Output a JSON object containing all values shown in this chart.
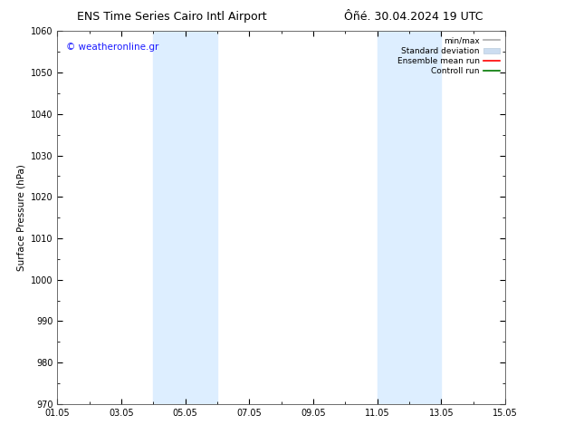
{
  "title_left": "ENS Time Series Cairo Intl Airport",
  "title_right": "Ôñé. 30.04.2024 19 UTC",
  "ylabel": "Surface Pressure (hPa)",
  "ylim": [
    970,
    1060
  ],
  "yticks": [
    970,
    980,
    990,
    1000,
    1010,
    1020,
    1030,
    1040,
    1050,
    1060
  ],
  "xlim_start": 0,
  "xlim_end": 14,
  "xtick_labels": [
    "01.05",
    "03.05",
    "05.05",
    "07.05",
    "09.05",
    "11.05",
    "13.05",
    "15.05"
  ],
  "xtick_positions": [
    0,
    2,
    4,
    6,
    8,
    10,
    12,
    14
  ],
  "shaded_regions": [
    {
      "x_start": 3.0,
      "x_end": 5.0,
      "color": "#ddeeff"
    },
    {
      "x_start": 10.0,
      "x_end": 12.0,
      "color": "#ddeeff"
    }
  ],
  "watermark": "© weatheronline.gr",
  "watermark_color": "#1a1aff",
  "background_color": "#ffffff",
  "legend_items": [
    {
      "label": "min/max",
      "color": "#aaaaaa",
      "lw": 1.2,
      "ls": "-"
    },
    {
      "label": "Standard deviation",
      "color": "#ccddf0",
      "lw": 7,
      "ls": "-"
    },
    {
      "label": "Ensemble mean run",
      "color": "#ff0000",
      "lw": 1.2,
      "ls": "-"
    },
    {
      "label": "Controll run",
      "color": "#007700",
      "lw": 1.2,
      "ls": "-"
    }
  ],
  "title_fontsize": 9,
  "axis_fontsize": 7.5,
  "tick_fontsize": 7,
  "watermark_fontsize": 7.5,
  "legend_fontsize": 6.5
}
